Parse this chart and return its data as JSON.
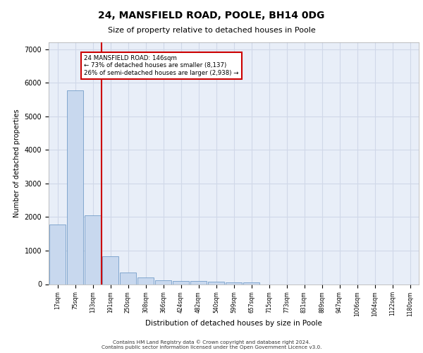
{
  "title": "24, MANSFIELD ROAD, POOLE, BH14 0DG",
  "subtitle": "Size of property relative to detached houses in Poole",
  "xlabel": "Distribution of detached houses by size in Poole",
  "ylabel": "Number of detached properties",
  "bar_color": "#c8d8ee",
  "bar_edge_color": "#6090c0",
  "vline_color": "#cc0000",
  "annotation_text": "24 MANSFIELD ROAD: 146sqm\n← 73% of detached houses are smaller (8,137)\n26% of semi-detached houses are larger (2,938) →",
  "annotation_box_color": "#cc0000",
  "categories": [
    "17sqm",
    "75sqm",
    "133sqm",
    "191sqm",
    "250sqm",
    "308sqm",
    "366sqm",
    "424sqm",
    "482sqm",
    "540sqm",
    "599sqm",
    "657sqm",
    "715sqm",
    "773sqm",
    "831sqm",
    "889sqm",
    "947sqm",
    "1006sqm",
    "1064sqm",
    "1122sqm",
    "1180sqm"
  ],
  "values": [
    1780,
    5780,
    2060,
    820,
    340,
    190,
    120,
    105,
    90,
    68,
    60,
    50,
    0,
    0,
    0,
    0,
    0,
    0,
    0,
    0,
    0
  ],
  "ylim": [
    0,
    7200
  ],
  "yticks": [
    0,
    1000,
    2000,
    3000,
    4000,
    5000,
    6000,
    7000
  ],
  "grid_color": "#d0d8e8",
  "background_color": "#e8eef8",
  "footer_line1": "Contains HM Land Registry data © Crown copyright and database right 2024.",
  "footer_line2": "Contains public sector information licensed under the Open Government Licence v3.0."
}
